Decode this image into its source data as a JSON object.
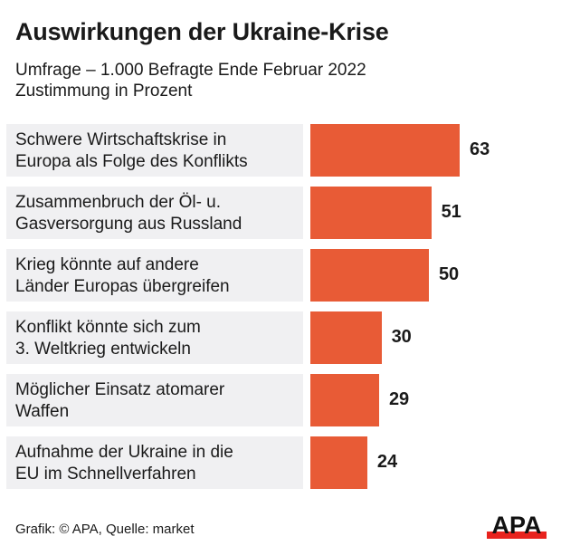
{
  "header": {
    "title": "Auswirkungen der Ukraine-Krise",
    "subtitle_line1": "Umfrage – 1.000 Befragte Ende Februar 2022",
    "subtitle_line2": "Zustimmung in Prozent"
  },
  "chart_data": {
    "type": "bar",
    "orientation": "horizontal",
    "title": "Auswirkungen der Ukraine-Krise",
    "subtitle": "Umfrage – 1.000 Befragte Ende Februar 2022, Zustimmung in Prozent",
    "xlabel": "",
    "ylabel": "",
    "unit": "Prozent",
    "xlim": [
      0,
      100
    ],
    "grid": false,
    "legend": "none",
    "bar_color": "#e85b36",
    "categories": [
      [
        "Schwere Wirtschaftskrise in",
        "Europa als Folge des Konflikts"
      ],
      [
        "Zusammenbruch der Öl- u.",
        "Gasversorgung aus Russland"
      ],
      [
        "Krieg könnte auf andere",
        "Länder Europas übergreifen"
      ],
      [
        "Konflikt könnte sich zum",
        "3. Weltkrieg entwickeln"
      ],
      [
        "Möglicher Einsatz atomarer",
        "Waffen"
      ],
      [
        "Aufnahme der Ukraine in die",
        "EU im Schnellverfahren"
      ]
    ],
    "values": [
      63,
      51,
      50,
      30,
      29,
      24
    ]
  },
  "footer": {
    "credit": "Grafik: © APA, Quelle: market",
    "logo_text": "APA",
    "logo_color": "#e8231e"
  }
}
